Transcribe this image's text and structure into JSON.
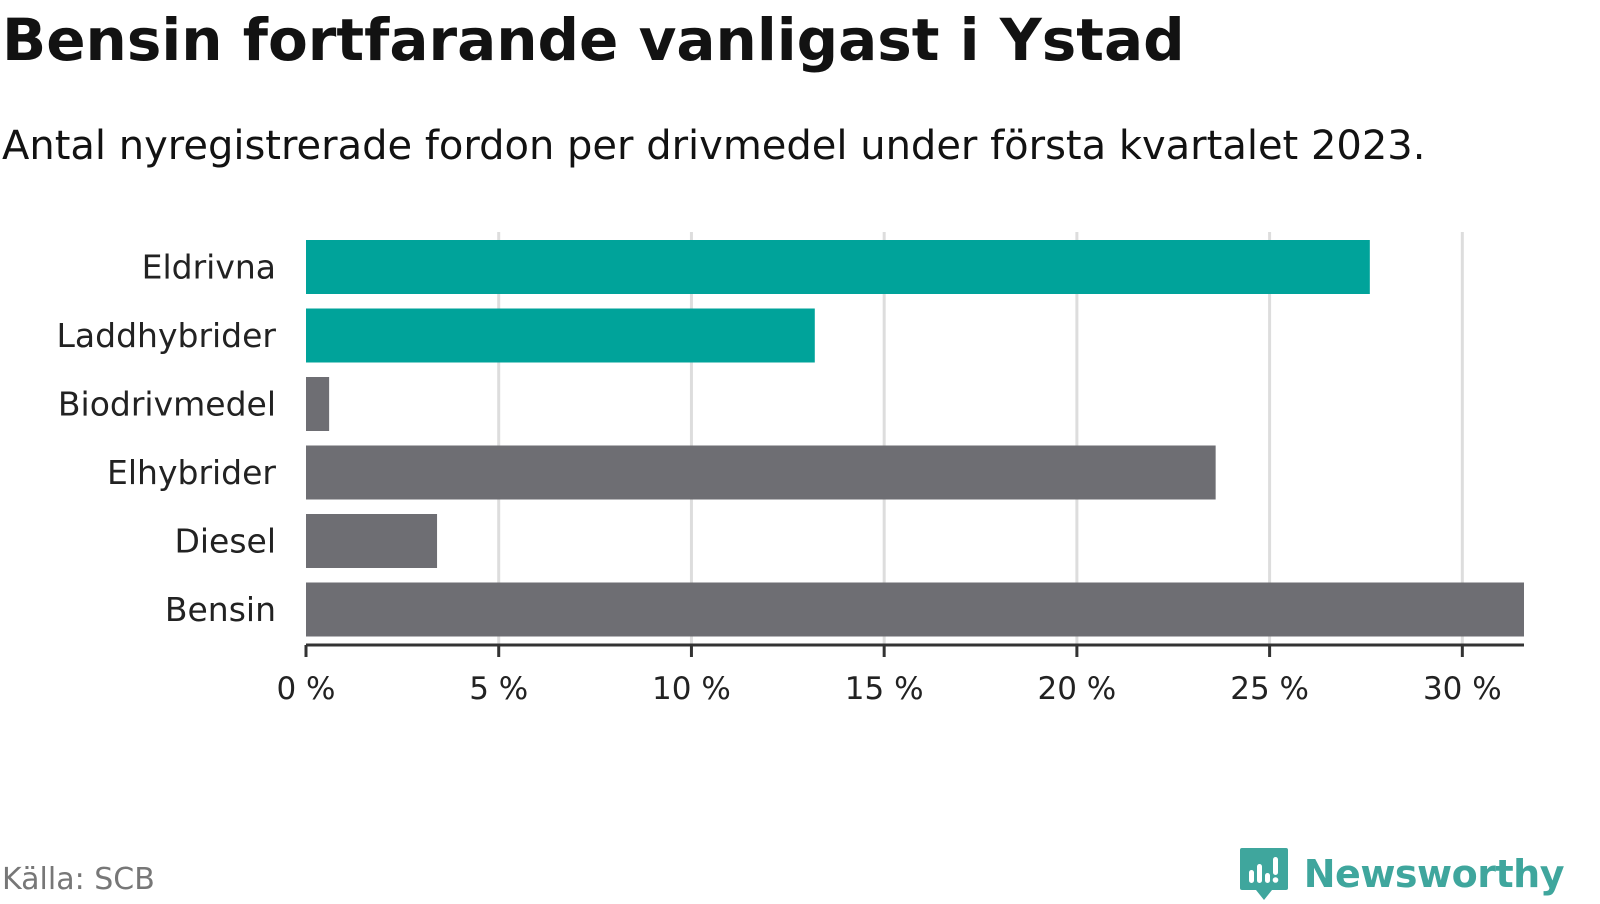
{
  "title": "Bensin fortfarande vanligast i Ystad",
  "subtitle": "Antal nyregistrerade fordon per drivmedel under första kvartalet 2023.",
  "source": "Källa: SCB",
  "brand": {
    "name": "Newsworthy",
    "icon": "newsworthy-logo-icon",
    "color": "#3fa69d"
  },
  "chart_data": {
    "type": "bar",
    "orientation": "horizontal",
    "categories": [
      "Eldrivna",
      "Laddhybrider",
      "Biodrivmedel",
      "Elhybrider",
      "Diesel",
      "Bensin"
    ],
    "values": [
      27.6,
      13.2,
      0.6,
      23.6,
      3.4,
      31.6
    ],
    "unit": "%",
    "colors": [
      "#00a39a",
      "#00a39a",
      "#6e6e73",
      "#6e6e73",
      "#6e6e73",
      "#6e6e73"
    ],
    "xlim": [
      0,
      31.6
    ],
    "xticks": [
      0,
      5,
      10,
      15,
      20,
      25,
      30
    ],
    "xtick_labels": [
      "0 %",
      "5 %",
      "10 %",
      "15 %",
      "20 %",
      "25 %",
      "30 %"
    ],
    "grid": true,
    "gridline_color": "#dddddd",
    "axis_color": "#333333",
    "xlabel": "",
    "ylabel": ""
  }
}
